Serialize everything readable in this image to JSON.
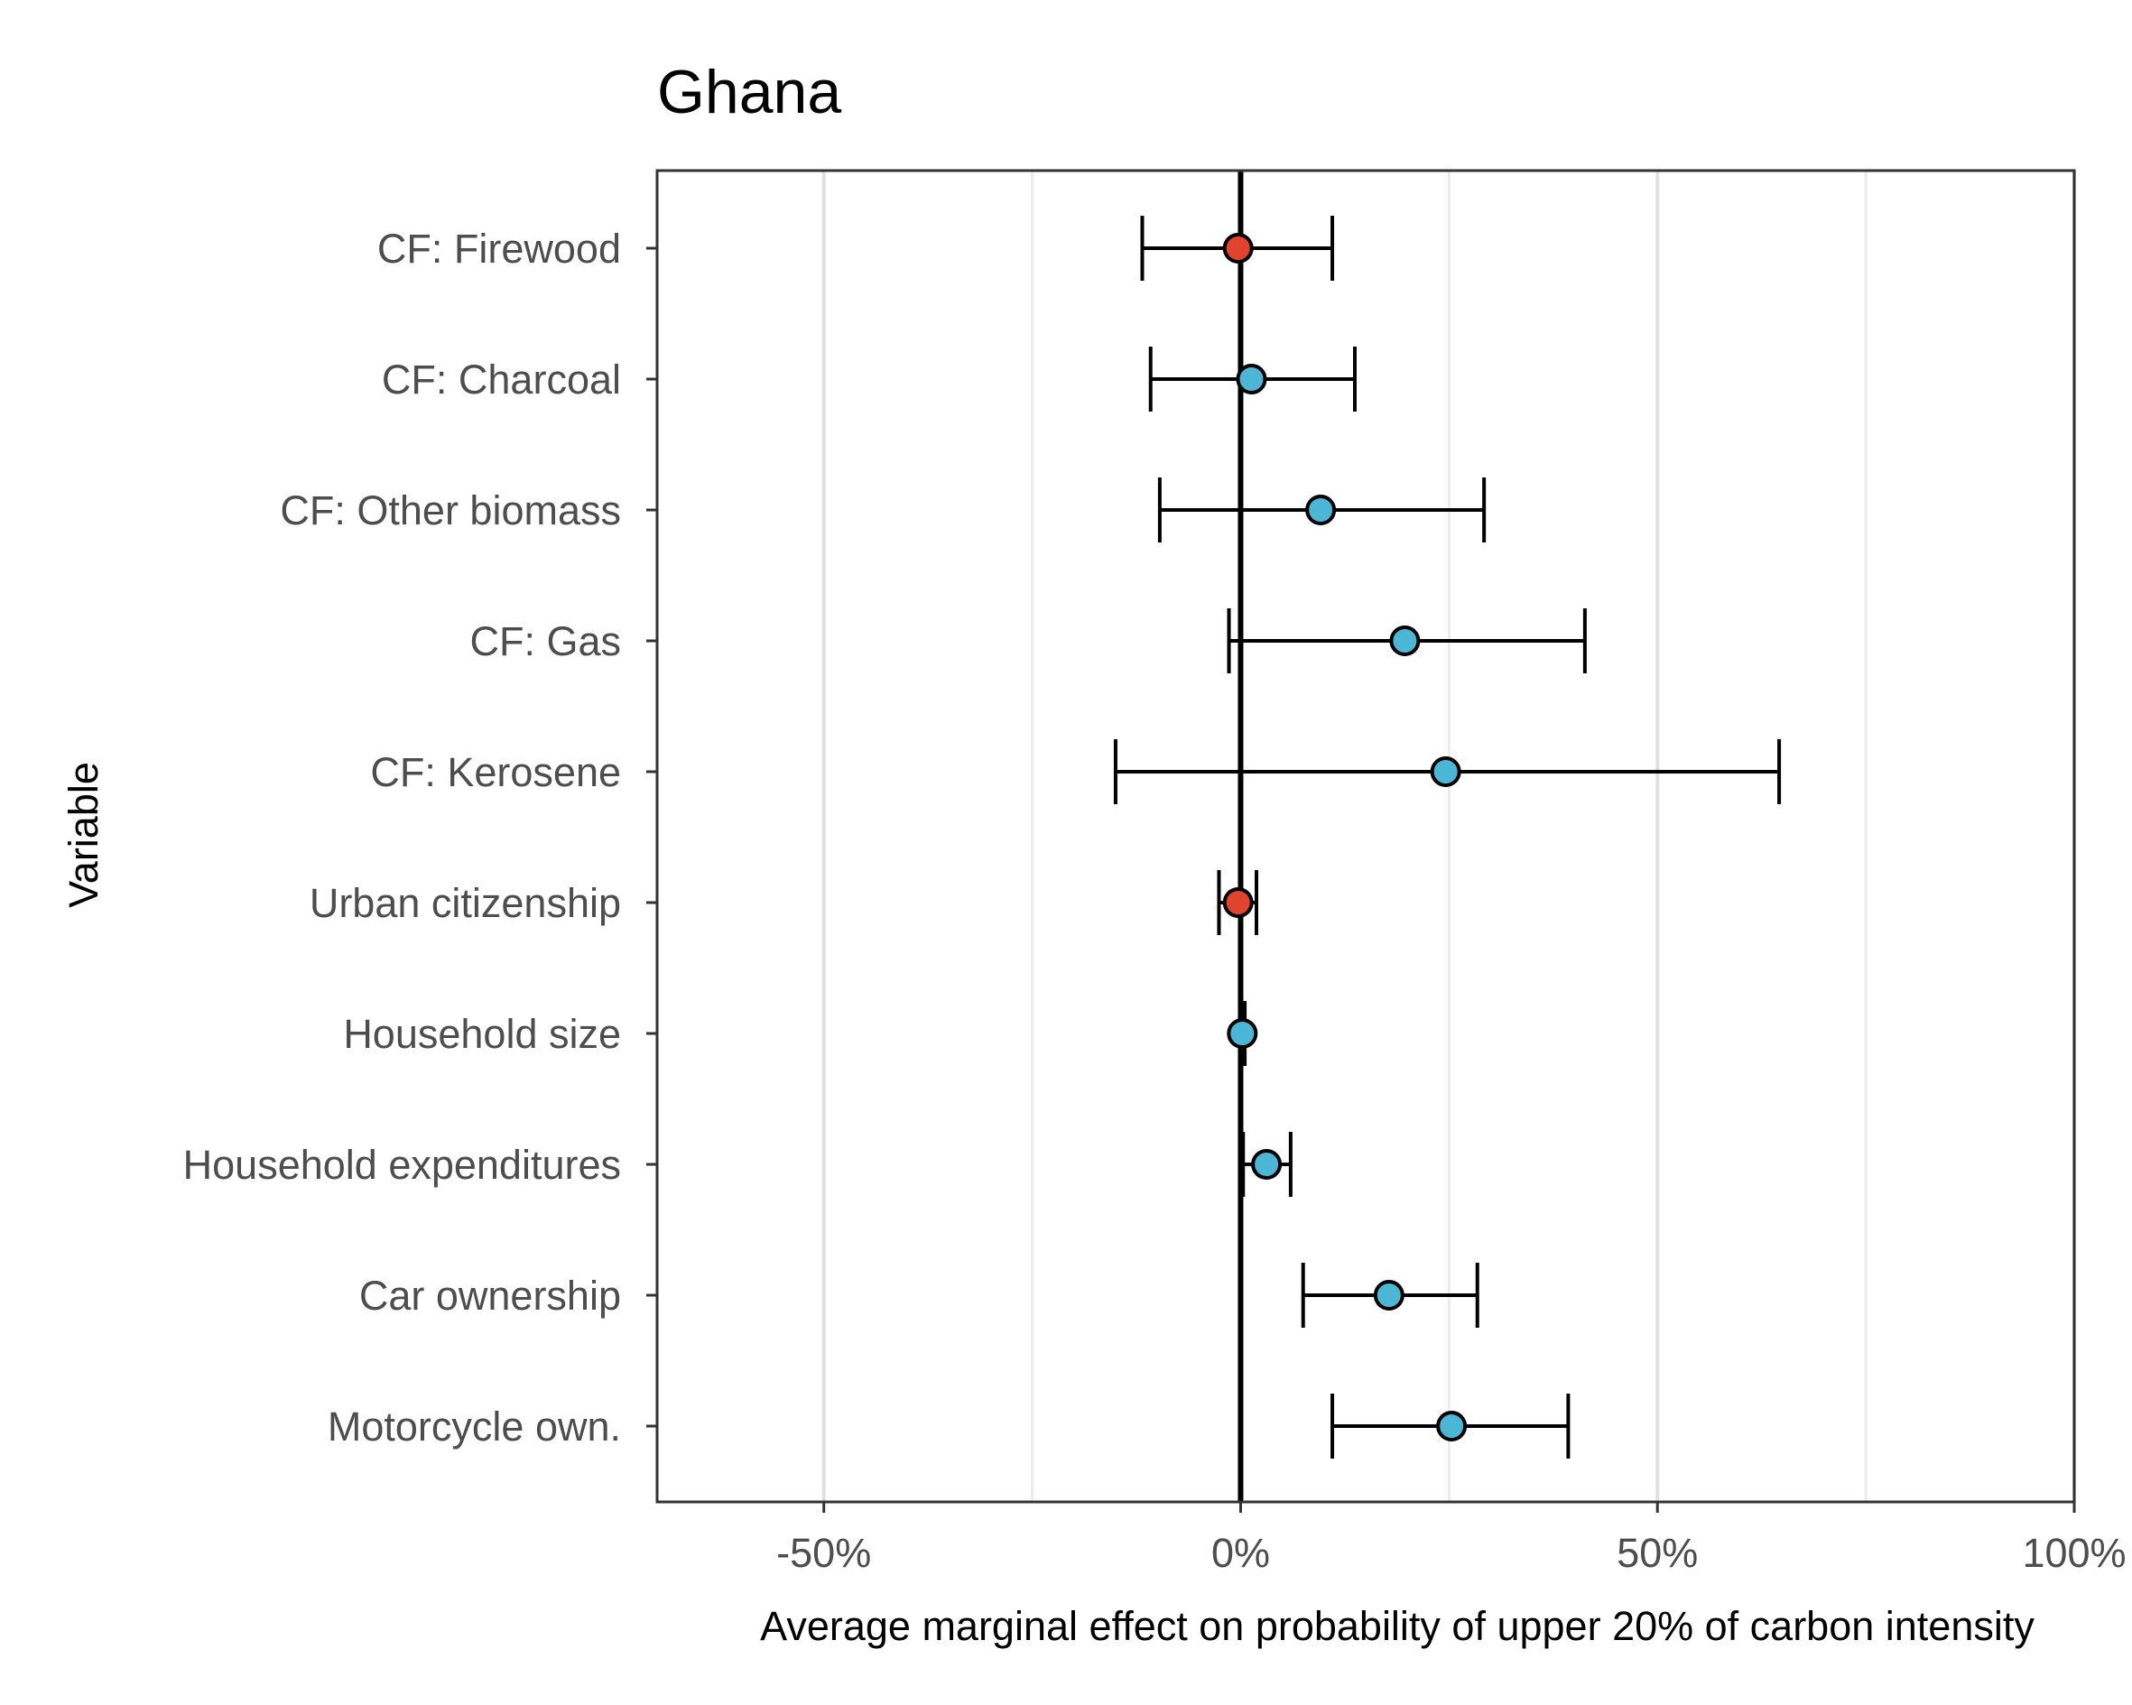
{
  "chart_data": {
    "type": "dot-errorbar",
    "title": "Ghana",
    "xlabel": "Average marginal effect on probability of upper 20% of carbon intensity",
    "ylabel": "Variable",
    "xlim": [
      -0.7,
      1.0
    ],
    "x_ticks": [
      {
        "value": -0.5,
        "label": "-50%"
      },
      {
        "value": 0,
        "label": "0%"
      },
      {
        "value": 0.5,
        "label": "50%"
      },
      {
        "value": 1.0,
        "label": "100%"
      }
    ],
    "minor_gridlines": [
      -0.25,
      0.25,
      0.75
    ],
    "reference_line": 0,
    "grid": true,
    "colors": {
      "negative": "#e0442e",
      "positive": "#4bb6d6",
      "outline": "#000000"
    },
    "series": [
      {
        "variable": "CF: Firewood",
        "estimate": -0.003,
        "lower": -0.118,
        "upper": 0.11,
        "sign": "negative"
      },
      {
        "variable": "CF: Charcoal",
        "estimate": 0.013,
        "lower": -0.108,
        "upper": 0.137,
        "sign": "positive"
      },
      {
        "variable": "CF: Other biomass",
        "estimate": 0.096,
        "lower": -0.097,
        "upper": 0.292,
        "sign": "positive"
      },
      {
        "variable": "CF: Gas",
        "estimate": 0.197,
        "lower": -0.014,
        "upper": 0.413,
        "sign": "positive"
      },
      {
        "variable": "CF: Kerosene",
        "estimate": 0.246,
        "lower": -0.15,
        "upper": 0.646,
        "sign": "positive"
      },
      {
        "variable": "Urban citizenship",
        "estimate": -0.003,
        "lower": -0.026,
        "upper": 0.019,
        "sign": "negative"
      },
      {
        "variable": "Household size",
        "estimate": 0.002,
        "lower": -0.001,
        "upper": 0.005,
        "sign": "positive"
      },
      {
        "variable": "Household expenditures",
        "estimate": 0.031,
        "lower": 0.003,
        "upper": 0.06,
        "sign": "positive"
      },
      {
        "variable": "Car ownership",
        "estimate": 0.178,
        "lower": 0.075,
        "upper": 0.284,
        "sign": "positive"
      },
      {
        "variable": "Motorcycle own.",
        "estimate": 0.253,
        "lower": 0.11,
        "upper": 0.393,
        "sign": "positive"
      }
    ]
  }
}
